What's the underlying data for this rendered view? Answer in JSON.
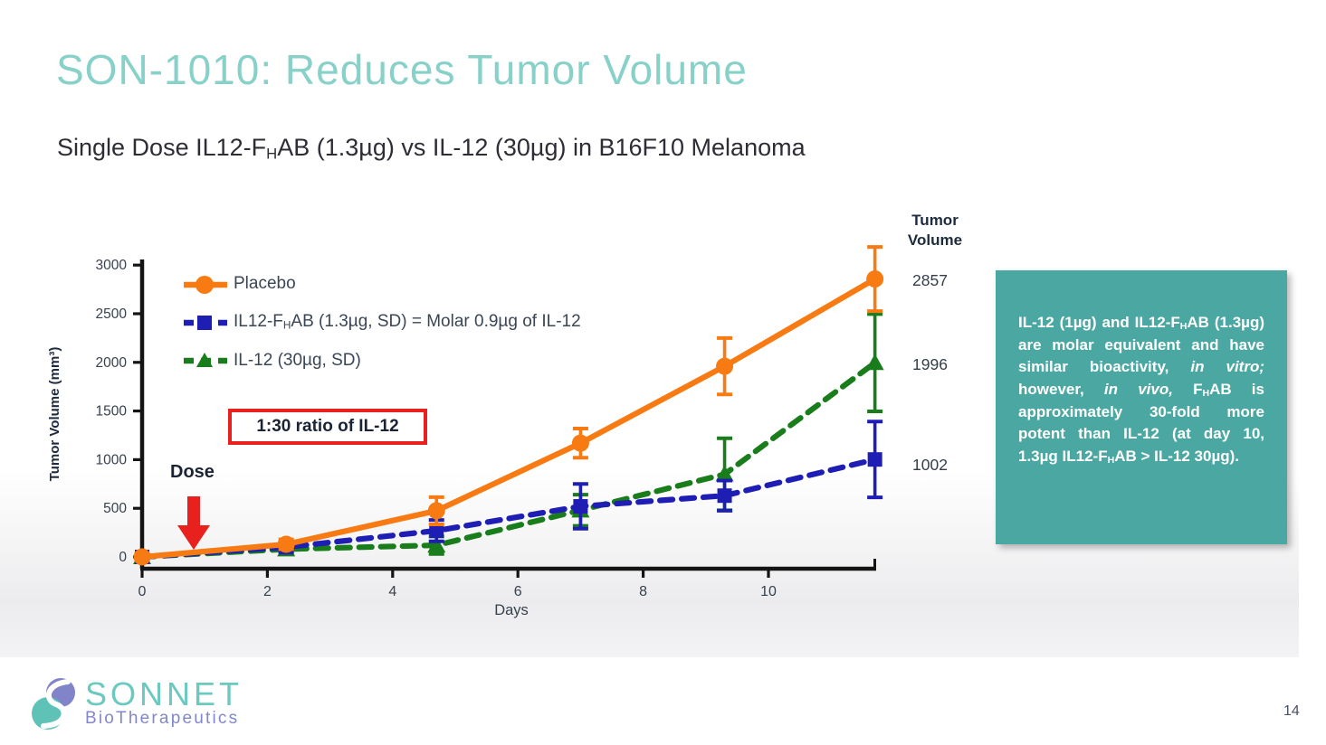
{
  "slide": {
    "title": "SON-1010: Reduces Tumor Volume",
    "subtitle_segments": [
      {
        "t": "Single Dose IL12-F"
      },
      {
        "t": "H",
        "s": "sub"
      },
      {
        "t": "AB (1.3µg) vs IL-12 (30µg) in B16F10 Melanoma"
      }
    ],
    "page_number": "14"
  },
  "logo": {
    "name": "SONNET",
    "tagline": "BioTherapeutics",
    "teal": "#6BC9C0",
    "purple": "#8287CB"
  },
  "chart_data": {
    "type": "line",
    "title": "",
    "xlabel": "Days",
    "ylabel": "Tumor Volume (mm³)",
    "x_ticks": [
      0,
      2,
      4,
      6,
      8,
      10
    ],
    "y_ticks": [
      0,
      500,
      1000,
      1500,
      2000,
      2500,
      3000
    ],
    "xlim": [
      0,
      11.8
    ],
    "ylim": [
      -120,
      3060
    ],
    "grid": false,
    "legend_position": "top-left",
    "x": [
      0,
      2.3,
      4.7,
      7,
      9.3,
      11.7
    ],
    "series": [
      {
        "name": "Placebo",
        "color": "#F87A13",
        "line": "solid",
        "marker": "circle",
        "values": [
          0,
          130,
          475,
          1170,
          1960,
          2857
        ],
        "errors": [
          30,
          50,
          140,
          150,
          290,
          330
        ],
        "end_label": "2857"
      },
      {
        "name": "IL12-FHAB (1.3µg, SD) = Molar 0.9µg of IL-12",
        "color": "#1E1EB4",
        "line": "dashed",
        "marker": "square",
        "values": [
          0,
          100,
          270,
          520,
          630,
          1002
        ],
        "errors": [
          25,
          45,
          110,
          230,
          155,
          390
        ],
        "end_label": "1002"
      },
      {
        "name": "IL-12 (30µg, SD)",
        "color": "#1A7D1B",
        "line": "dashed",
        "marker": "triangle",
        "values": [
          0,
          80,
          120,
          480,
          850,
          1996
        ],
        "errors": [
          20,
          40,
          90,
          160,
          370,
          500
        ],
        "end_label": "1996"
      }
    ],
    "legend_rich": [
      [
        {
          "t": "Placebo"
        }
      ],
      [
        {
          "t": "IL12-F"
        },
        {
          "t": "H",
          "s": "sub"
        },
        {
          "t": "AB (1.3µg, SD) = Molar 0.9µg of IL-12"
        }
      ],
      [
        {
          "t": "IL-12 (30µg, SD)"
        }
      ]
    ],
    "annotations": {
      "dose_label": "Dose",
      "ratio_box": "1:30 ratio of IL-12",
      "right_header": "Tumor Volume",
      "arrow_color": "#E8201E"
    }
  },
  "teal_box": {
    "background": "#4BA7A1",
    "segments": [
      {
        "t": "IL-12 (1µg) and IL12-F"
      },
      {
        "t": "H",
        "s": "sub"
      },
      {
        "t": "AB (1.3µg) are molar equivalent and have similar bioactivity, "
      },
      {
        "t": "in vitro;",
        "s": "i"
      },
      {
        "t": " however, "
      },
      {
        "t": "in vivo,",
        "s": "i"
      },
      {
        "t": " F"
      },
      {
        "t": "H",
        "s": "sub"
      },
      {
        "t": "AB is approximately 30-fold more potent than IL-12 (at day 10, 1.3µg IL12-F"
      },
      {
        "t": "H",
        "s": "sub"
      },
      {
        "t": "AB > IL-12 30µg)."
      }
    ]
  }
}
